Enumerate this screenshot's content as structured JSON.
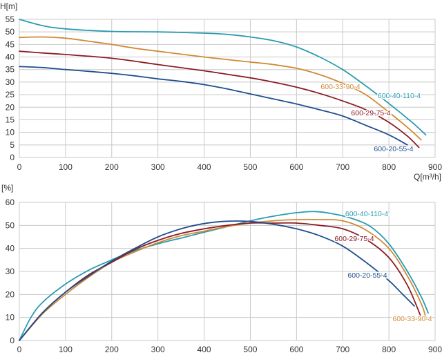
{
  "chart_data": [
    {
      "type": "line",
      "ylabel": "H[m]",
      "xlabel": "Q[m³/h]",
      "xlim": [
        0,
        900
      ],
      "ylim": [
        0,
        55
      ],
      "x_ticks": [
        "0",
        "100",
        "200",
        "300",
        "400",
        "500",
        "600",
        "700",
        "800",
        "900"
      ],
      "y_ticks": [
        "0",
        "5",
        "10",
        "15",
        "20",
        "25",
        "30",
        "35",
        "40",
        "45",
        "50",
        "55"
      ],
      "grid": true,
      "series": [
        {
          "name": "600-40-110-4",
          "color": "#2a9bb2",
          "label_pos": [
            578,
            142
          ],
          "points": [
            [
              0,
              55
            ],
            [
              50,
              52.5
            ],
            [
              100,
              51.2
            ],
            [
              200,
              50.2
            ],
            [
              300,
              50
            ],
            [
              400,
              49.5
            ],
            [
              450,
              49
            ],
            [
              500,
              48
            ],
            [
              550,
              46.5
            ],
            [
              600,
              44
            ],
            [
              650,
              40
            ],
            [
              700,
              35
            ],
            [
              750,
              28.5
            ],
            [
              800,
              21.5
            ],
            [
              850,
              14
            ],
            [
              880,
              9
            ]
          ]
        },
        {
          "name": "600-33-90-4",
          "color": "#d08a36",
          "label_pos": [
            493,
            129
          ],
          "points": [
            [
              0,
              47.8
            ],
            [
              50,
              48
            ],
            [
              100,
              47.5
            ],
            [
              150,
              46.3
            ],
            [
              200,
              45
            ],
            [
              250,
              43.5
            ],
            [
              300,
              42.3
            ],
            [
              400,
              40
            ],
            [
              500,
              38
            ],
            [
              550,
              37
            ],
            [
              600,
              35.5
            ],
            [
              650,
              33
            ],
            [
              700,
              29.5
            ],
            [
              750,
              25
            ],
            [
              800,
              18
            ],
            [
              840,
              12
            ],
            [
              870,
              7
            ]
          ]
        },
        {
          "name": "600-29-75-4",
          "color": "#8b1c24",
          "label_pos": [
            537,
            167
          ],
          "points": [
            [
              0,
              42.3
            ],
            [
              50,
              41.6
            ],
            [
              100,
              41
            ],
            [
              200,
              39.5
            ],
            [
              300,
              37
            ],
            [
              400,
              34.5
            ],
            [
              500,
              31.7
            ],
            [
              550,
              30
            ],
            [
              600,
              28
            ],
            [
              650,
              25.5
            ],
            [
              700,
              22.5
            ],
            [
              750,
              19
            ],
            [
              800,
              14
            ],
            [
              840,
              8.5
            ],
            [
              865,
              4
            ]
          ]
        },
        {
          "name": "600-20-55-4",
          "color": "#1f4e8c",
          "label_pos": [
            570,
            219
          ],
          "points": [
            [
              0,
              36.2
            ],
            [
              50,
              35.8
            ],
            [
              100,
              35
            ],
            [
              150,
              34.3
            ],
            [
              200,
              33.5
            ],
            [
              250,
              32.5
            ],
            [
              300,
              31.3
            ],
            [
              350,
              30.3
            ],
            [
              400,
              29
            ],
            [
              450,
              27.3
            ],
            [
              500,
              25.3
            ],
            [
              550,
              23.3
            ],
            [
              600,
              21.3
            ],
            [
              650,
              19
            ],
            [
              700,
              16.5
            ],
            [
              750,
              12.8
            ],
            [
              800,
              9
            ],
            [
              840,
              5
            ]
          ]
        }
      ]
    },
    {
      "type": "line",
      "ylabel": "[%]",
      "xlabel": "",
      "xlim": [
        0,
        900
      ],
      "ylim": [
        0,
        60
      ],
      "x_ticks": [
        "0",
        "100",
        "200",
        "300",
        "400",
        "500",
        "600",
        "700",
        "800",
        "900"
      ],
      "y_ticks": [
        "0",
        "10",
        "20",
        "30",
        "40",
        "50",
        "60"
      ],
      "grid": true,
      "series": [
        {
          "name": "600-40-110-4",
          "color": "#2a9bb2",
          "label_pos": [
            531,
            313
          ],
          "points": [
            [
              0,
              0
            ],
            [
              25,
              10
            ],
            [
              50,
              16.5
            ],
            [
              100,
              24.5
            ],
            [
              150,
              30.5
            ],
            [
              200,
              35
            ],
            [
              250,
              39
            ],
            [
              300,
              42
            ],
            [
              350,
              44.5
            ],
            [
              400,
              47
            ],
            [
              450,
              49.5
            ],
            [
              500,
              52
            ],
            [
              550,
              54
            ],
            [
              600,
              55.5
            ],
            [
              640,
              56
            ],
            [
              680,
              55
            ],
            [
              720,
              53
            ],
            [
              760,
              49.5
            ],
            [
              800,
              42
            ],
            [
              840,
              30
            ],
            [
              870,
              19
            ],
            [
              885,
              12
            ]
          ]
        },
        {
          "name": "600-33-90-4",
          "color": "#d08a36",
          "label_pos": [
            597,
            465
          ],
          "points": [
            [
              0,
              0
            ],
            [
              50,
              11.5
            ],
            [
              100,
              20
            ],
            [
              150,
              27.5
            ],
            [
              200,
              34
            ],
            [
              250,
              38.5
            ],
            [
              300,
              42.5
            ],
            [
              350,
              45.5
            ],
            [
              400,
              47.5
            ],
            [
              450,
              49.5
            ],
            [
              500,
              51
            ],
            [
              550,
              52
            ],
            [
              600,
              52.5
            ],
            [
              650,
              52.5
            ],
            [
              700,
              52
            ],
            [
              750,
              48
            ],
            [
              800,
              40
            ],
            [
              840,
              28
            ],
            [
              870,
              16
            ],
            [
              880,
              10
            ]
          ]
        },
        {
          "name": "600-29-75-4",
          "color": "#8b1c24",
          "label_pos": [
            513,
            349
          ],
          "points": [
            [
              0,
              0
            ],
            [
              50,
              12
            ],
            [
              100,
              21
            ],
            [
              150,
              28.5
            ],
            [
              200,
              34
            ],
            [
              250,
              39.5
            ],
            [
              300,
              43.5
            ],
            [
              350,
              46.5
            ],
            [
              400,
              48.5
            ],
            [
              450,
              50
            ],
            [
              500,
              51
            ],
            [
              550,
              51
            ],
            [
              600,
              51
            ],
            [
              650,
              50
            ],
            [
              700,
              48.5
            ],
            [
              750,
              44
            ],
            [
              800,
              36
            ],
            [
              840,
              24
            ],
            [
              868,
              11
            ]
          ]
        },
        {
          "name": "600-20-55-4",
          "color": "#1f4e8c",
          "label_pos": [
            532,
            402
          ],
          "points": [
            [
              0,
              0
            ],
            [
              50,
              12
            ],
            [
              100,
              21
            ],
            [
              150,
              28
            ],
            [
              200,
              34.5
            ],
            [
              250,
              40
            ],
            [
              300,
              45
            ],
            [
              350,
              48.5
            ],
            [
              400,
              50.8
            ],
            [
              450,
              51.8
            ],
            [
              500,
              51.7
            ],
            [
              550,
              50.5
            ],
            [
              600,
              48.5
            ],
            [
              650,
              45.5
            ],
            [
              700,
              41
            ],
            [
              750,
              34
            ],
            [
              800,
              26
            ],
            [
              830,
              20
            ],
            [
              855,
              15
            ]
          ]
        }
      ]
    }
  ]
}
